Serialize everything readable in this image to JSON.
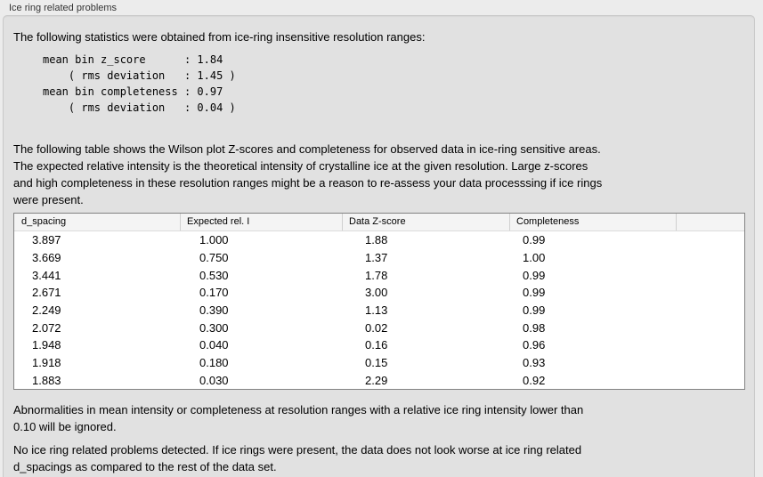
{
  "panel": {
    "title": "Ice ring related problems"
  },
  "content": {
    "intro": "The following statistics were obtained from ice-ring insensitive resolution ranges:",
    "stats_block": "mean bin z_score      : 1.84\n    ( rms deviation   : 1.45 )\nmean bin completeness : 0.97\n    ( rms deviation   : 0.04 )",
    "table_description": "The following table shows the Wilson plot Z-scores and completeness for observed data in ice-ring sensitive areas.\nThe expected relative intensity is the theoretical intensity of crystalline ice at the given resolution. Large z-scores\nand high completeness in these resolution ranges might be a reason to re-assess your data processsing if ice rings\nwere present.",
    "ignore_note": "Abnormalities in mean intensity or completeness at resolution ranges with a relative ice ring intensity lower than\n0.10 will be ignored.",
    "conclusion": "No ice ring related problems detected. If ice rings were present, the data does not look worse at ice ring related\nd_spacings as compared to the rest of the data set."
  },
  "table": {
    "headers": [
      "d_spacing",
      "Expected rel. I",
      "Data Z-score",
      "Completeness",
      ""
    ],
    "rows": [
      [
        "3.897",
        "1.000",
        "1.88",
        "0.99"
      ],
      [
        "3.669",
        "0.750",
        "1.37",
        "1.00"
      ],
      [
        "3.441",
        "0.530",
        "1.78",
        "0.99"
      ],
      [
        "2.671",
        "0.170",
        "3.00",
        "0.99"
      ],
      [
        "2.249",
        "0.390",
        "1.13",
        "0.99"
      ],
      [
        "2.072",
        "0.300",
        "0.02",
        "0.98"
      ],
      [
        "1.948",
        "0.040",
        "0.16",
        "0.96"
      ],
      [
        "1.918",
        "0.180",
        "0.15",
        "0.93"
      ],
      [
        "1.883",
        "0.030",
        "2.29",
        "0.92"
      ]
    ]
  },
  "colors": {
    "page_background": "#ececec",
    "group_box_background": "#e1e1e1",
    "table_header_background": "#f4f4f4",
    "table_border": "#828282"
  }
}
